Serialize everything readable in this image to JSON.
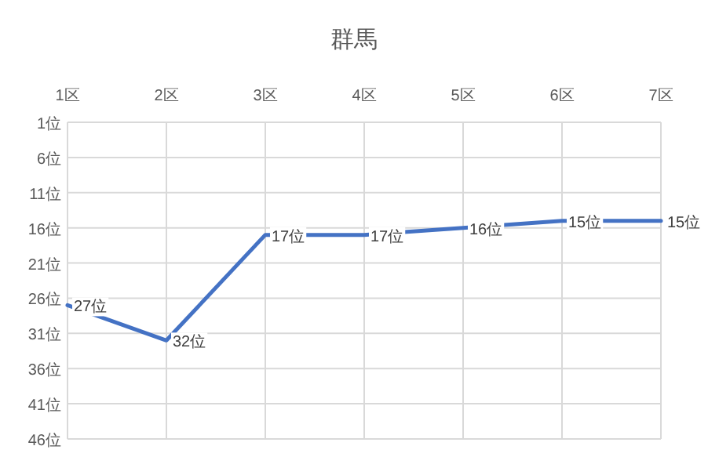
{
  "chart_data": {
    "type": "line",
    "title": "群馬",
    "categories": [
      "1区",
      "2区",
      "3区",
      "4区",
      "5区",
      "6区",
      "7区"
    ],
    "series": [
      {
        "color": "#4472c4",
        "values": [
          27,
          32,
          17,
          17,
          16,
          15,
          15
        ],
        "value_labels": [
          "27位",
          "32位",
          "17位",
          "17位",
          "16位",
          "15位",
          "15位"
        ]
      }
    ],
    "ylim": [
      46,
      1
    ],
    "yticks": [
      {
        "value": 1,
        "label": "1位"
      },
      {
        "value": 6,
        "label": "6位"
      },
      {
        "value": 11,
        "label": "11位"
      },
      {
        "value": 16,
        "label": "16位"
      },
      {
        "value": 21,
        "label": "21位"
      },
      {
        "value": 26,
        "label": "26位"
      },
      {
        "value": 31,
        "label": "31位"
      },
      {
        "value": 36,
        "label": "36位"
      },
      {
        "value": 41,
        "label": "41位"
      },
      {
        "value": 46,
        "label": "46位"
      }
    ],
    "grid": true,
    "line_style": "solid",
    "marker": "none"
  }
}
